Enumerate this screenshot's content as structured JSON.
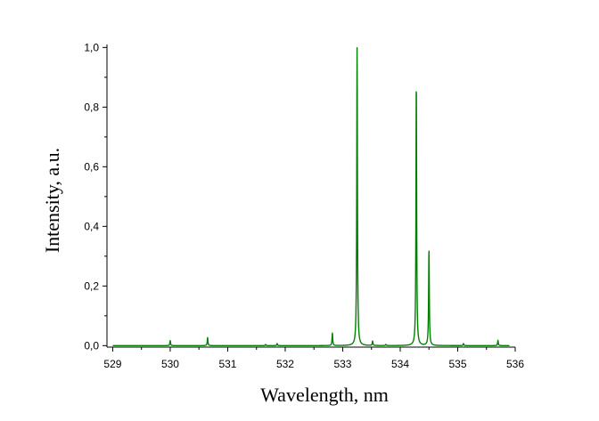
{
  "chart_data": {
    "type": "line",
    "xlabel": "Wavelength, nm",
    "ylabel": "Intensity, a.u.",
    "xlim": [
      528.9,
      536.0
    ],
    "ylim": [
      -0.005,
      1.01
    ],
    "x_ticks": [
      529,
      530,
      531,
      532,
      533,
      534,
      535,
      536
    ],
    "x_tick_labels": [
      "529",
      "530",
      "531",
      "532",
      "533",
      "534",
      "535",
      "536"
    ],
    "y_ticks": [
      0.0,
      0.2,
      0.4,
      0.6,
      0.8,
      1.0
    ],
    "y_tick_labels": [
      "0,0",
      "0,2",
      "0,4",
      "0,6",
      "0,8",
      "1,0"
    ],
    "grid": false,
    "legend": "none",
    "series": [
      {
        "color": "#008000",
        "baseline": 0.0,
        "peaks": [
          {
            "x": 530.0,
            "y": 0.017
          },
          {
            "x": 530.65,
            "y": 0.027
          },
          {
            "x": 531.66,
            "y": 0.004
          },
          {
            "x": 531.86,
            "y": 0.007
          },
          {
            "x": 532.82,
            "y": 0.042
          },
          {
            "x": 533.25,
            "y": 1.0
          },
          {
            "x": 533.52,
            "y": 0.015
          },
          {
            "x": 533.75,
            "y": 0.004
          },
          {
            "x": 534.28,
            "y": 0.89
          },
          {
            "x": 534.5,
            "y": 0.325
          },
          {
            "x": 535.1,
            "y": 0.007
          },
          {
            "x": 535.7,
            "y": 0.018
          }
        ]
      }
    ]
  }
}
